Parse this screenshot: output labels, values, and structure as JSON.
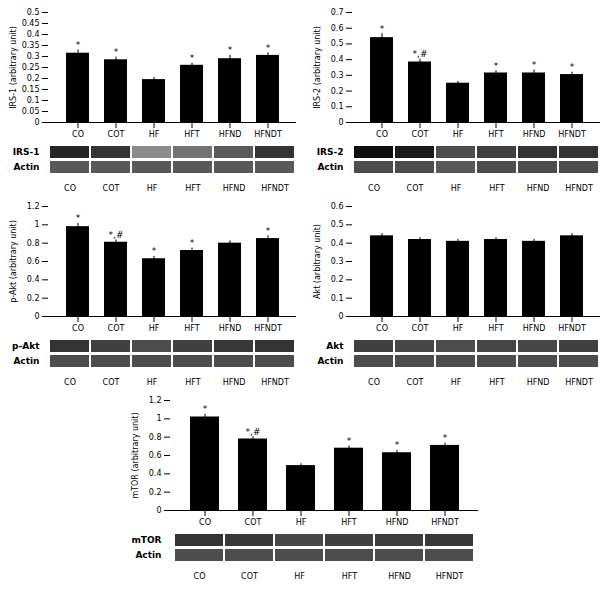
{
  "chart_data": [
    {
      "type": "bar",
      "categories": [
        "CO",
        "COT",
        "HF",
        "HFT",
        "HFND",
        "HFNDT"
      ],
      "values": [
        0.315,
        0.285,
        0.195,
        0.26,
        0.29,
        0.305
      ],
      "errors": [
        0.015,
        0.012,
        0.01,
        0.01,
        0.015,
        0.012
      ],
      "ylabel": "IRS-1 (arbitrary unit)",
      "ylim": [
        0,
        0.5
      ],
      "yticks": [
        0,
        0.05,
        0.1,
        0.15,
        0.2,
        0.25,
        0.3,
        0.35,
        0.4,
        0.45,
        0.5
      ],
      "color": "#000000",
      "annotations": [
        {
          "category": "CO",
          "text": "*"
        },
        {
          "category": "COT",
          "text": "*"
        },
        {
          "category": "HFT",
          "text": "*"
        },
        {
          "category": "HFND",
          "text": "*"
        },
        {
          "category": "HFNDT",
          "text": "*"
        }
      ]
    },
    {
      "type": "bar",
      "categories": [
        "CO",
        "COT",
        "HF",
        "HFT",
        "HFND",
        "HFNDT"
      ],
      "values": [
        0.54,
        0.385,
        0.25,
        0.315,
        0.315,
        0.305
      ],
      "errors": [
        0.025,
        0.018,
        0.012,
        0.015,
        0.02,
        0.015
      ],
      "ylabel": "IRS-2 (arbitrary unit)",
      "ylim": [
        0,
        0.7
      ],
      "yticks": [
        0,
        0.1,
        0.2,
        0.3,
        0.4,
        0.5,
        0.6,
        0.7
      ],
      "color": "#000000",
      "annotations": [
        {
          "category": "CO",
          "text": "*"
        },
        {
          "category": "COT",
          "text": "*,#"
        },
        {
          "category": "HFT",
          "text": "*"
        },
        {
          "category": "HFND",
          "text": "*"
        },
        {
          "category": "HFNDT",
          "text": "*"
        }
      ]
    },
    {
      "type": "heatmap",
      "categories": [
        "CO",
        "COT",
        "HF",
        "HFT",
        "HFND",
        "HFNDT"
      ],
      "rows": [
        "IRS-1",
        "Actin"
      ],
      "cells": [
        [
          0.15,
          0.2,
          0.55,
          0.45,
          0.35,
          0.2
        ],
        [
          0.35,
          0.35,
          0.35,
          0.35,
          0.35,
          0.35
        ]
      ]
    },
    {
      "type": "heatmap",
      "categories": [
        "CO",
        "COT",
        "HF",
        "HFT",
        "HFND",
        "HFNDT"
      ],
      "rows": [
        "IRS-2",
        "Actin"
      ],
      "cells": [
        [
          0.05,
          0.1,
          0.3,
          0.25,
          0.2,
          0.2
        ],
        [
          0.3,
          0.3,
          0.35,
          0.3,
          0.3,
          0.3
        ]
      ]
    },
    {
      "type": "bar",
      "categories": [
        "CO",
        "COT",
        "HF",
        "HFT",
        "HFND",
        "HFNDT"
      ],
      "values": [
        0.98,
        0.81,
        0.63,
        0.72,
        0.8,
        0.85
      ],
      "errors": [
        0.035,
        0.025,
        0.025,
        0.025,
        0.025,
        0.03
      ],
      "ylabel": "p-Akt (arbitrary unit)",
      "ylim": [
        0,
        1.2
      ],
      "yticks": [
        0,
        0.2,
        0.4,
        0.6,
        0.8,
        1,
        1.2
      ],
      "color": "#000000",
      "annotations": [
        {
          "category": "CO",
          "text": "*"
        },
        {
          "category": "COT",
          "text": "*,#"
        },
        {
          "category": "HF",
          "text": "*"
        },
        {
          "category": "HFT",
          "text": "*"
        },
        {
          "category": "HFNDT",
          "text": "*"
        }
      ]
    },
    {
      "type": "bar",
      "categories": [
        "CO",
        "COT",
        "HF",
        "HFT",
        "HFND",
        "HFNDT"
      ],
      "values": [
        0.44,
        0.42,
        0.41,
        0.42,
        0.41,
        0.44
      ],
      "errors": [
        0.012,
        0.01,
        0.01,
        0.01,
        0.01,
        0.012
      ],
      "ylabel": "Akt (arbitrary unit)",
      "ylim": [
        0,
        0.6
      ],
      "yticks": [
        0,
        0.1,
        0.2,
        0.3,
        0.4,
        0.5,
        0.6
      ],
      "color": "#000000",
      "annotations": []
    },
    {
      "type": "heatmap",
      "categories": [
        "CO",
        "COT",
        "HF",
        "HFT",
        "HFND",
        "HFNDT"
      ],
      "rows": [
        "p-Akt",
        "Actin"
      ],
      "cells": [
        [
          0.2,
          0.25,
          0.3,
          0.25,
          0.22,
          0.2
        ],
        [
          0.3,
          0.3,
          0.3,
          0.3,
          0.3,
          0.3
        ]
      ]
    },
    {
      "type": "heatmap",
      "categories": [
        "CO",
        "COT",
        "HF",
        "HFT",
        "HFND",
        "HFNDT"
      ],
      "rows": [
        "Akt",
        "Actin"
      ],
      "cells": [
        [
          0.25,
          0.28,
          0.3,
          0.27,
          0.28,
          0.25
        ],
        [
          0.3,
          0.3,
          0.3,
          0.3,
          0.3,
          0.3
        ]
      ]
    },
    {
      "type": "bar",
      "categories": [
        "CO",
        "COT",
        "HF",
        "HFT",
        "HFND",
        "HFNDT"
      ],
      "values": [
        1.02,
        0.78,
        0.49,
        0.68,
        0.63,
        0.71
      ],
      "errors": [
        0.03,
        0.025,
        0.02,
        0.025,
        0.025,
        0.025
      ],
      "ylabel": "mTOR (arbitrary unit)",
      "ylim": [
        0,
        1.2
      ],
      "yticks": [
        0,
        0.2,
        0.4,
        0.6,
        0.8,
        1,
        1.2
      ],
      "color": "#000000",
      "annotations": [
        {
          "category": "CO",
          "text": "*"
        },
        {
          "category": "COT",
          "text": "*,#"
        },
        {
          "category": "HFT",
          "text": "*"
        },
        {
          "category": "HFND",
          "text": "*"
        },
        {
          "category": "HFNDT",
          "text": "*"
        }
      ]
    },
    {
      "type": "heatmap",
      "categories": [
        "CO",
        "COT",
        "HF",
        "HFT",
        "HFND",
        "HFNDT"
      ],
      "rows": [
        "mTOR",
        "Actin"
      ],
      "cells": [
        [
          0.2,
          0.22,
          0.28,
          0.25,
          0.24,
          0.22
        ],
        [
          0.3,
          0.3,
          0.3,
          0.3,
          0.3,
          0.3
        ]
      ]
    }
  ]
}
